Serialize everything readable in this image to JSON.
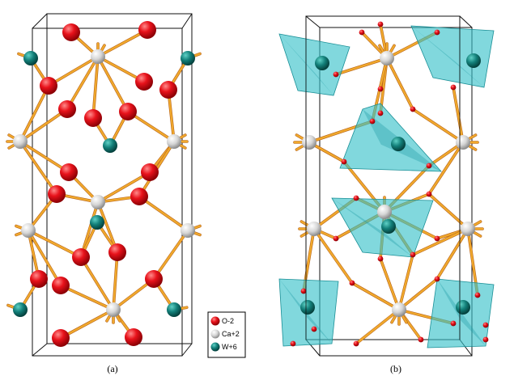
{
  "panels": [
    {
      "id": "a",
      "caption": "(a)"
    },
    {
      "id": "b",
      "caption": "(b)"
    }
  ],
  "legend": {
    "items": [
      {
        "label": "O-2",
        "color": "#e8121b",
        "icon": "oxygen-atom-icon"
      },
      {
        "label": "Ca+2",
        "color": "#d9d9d9",
        "icon": "calcium-atom-icon"
      },
      {
        "label": "W+6",
        "color": "#13807a",
        "icon": "tungsten-atom-icon"
      }
    ]
  },
  "colors": {
    "bond": "#f0a92c",
    "bond_dark": "#b8641c",
    "polyhedron": "#34c0c8",
    "cell_edge": "#111111"
  }
}
